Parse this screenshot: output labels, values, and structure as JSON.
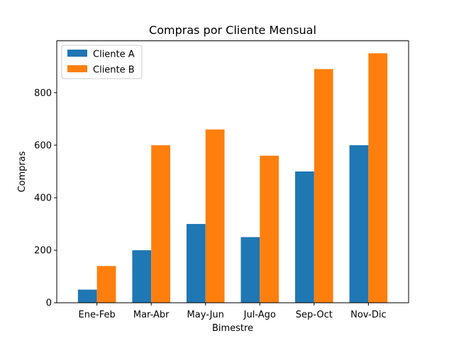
{
  "chart_data": {
    "type": "bar",
    "title": "Compras por Cliente Mensual",
    "xlabel": "Bimestre",
    "ylabel": "Compras",
    "categories": [
      "Ene-Feb",
      "Mar-Abr",
      "May-Jun",
      "Jul-Ago",
      "Sep-Oct",
      "Nov-Dic"
    ],
    "series": [
      {
        "name": "Cliente A",
        "values": [
          50,
          200,
          300,
          250,
          500,
          600
        ],
        "color": "#1f77b4"
      },
      {
        "name": "Cliente B",
        "values": [
          140,
          600,
          660,
          560,
          890,
          950
        ],
        "color": "#ff7f0e"
      }
    ],
    "ylim": [
      0,
      997.5
    ],
    "yticks": [
      0,
      200,
      400,
      600,
      800
    ],
    "grid": false,
    "legend_position": "top-left"
  }
}
